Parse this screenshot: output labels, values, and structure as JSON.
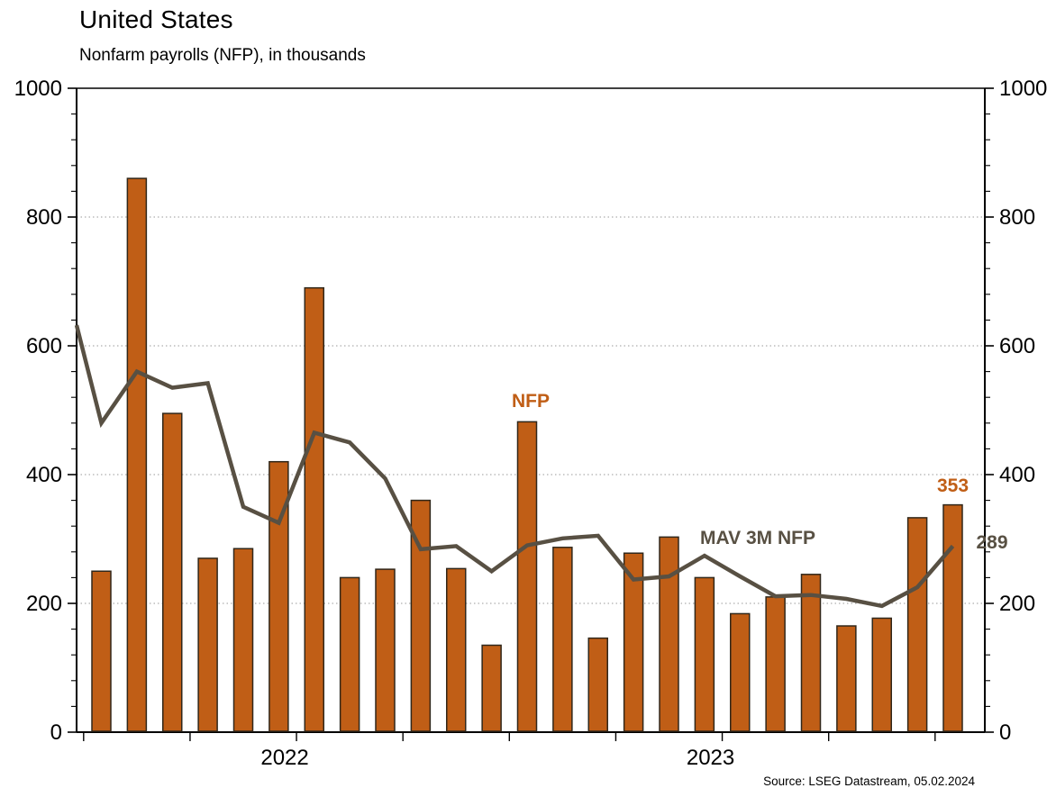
{
  "header": {
    "title": "United States",
    "subtitle": "Nonfarm payrolls (NFP), in thousands"
  },
  "source_note": "Source: LSEG Datastream, 05.02.2024",
  "annotations": {
    "bar_series_label": "NFP",
    "line_series_label": "MAV 3M NFP",
    "last_bar_value_label": "353",
    "last_line_value_label": "289"
  },
  "colors": {
    "bar_fill": "#c05e16",
    "bar_stroke": "#30271a",
    "line": "#585043",
    "grid": "#9a9a9a",
    "axis": "#000000",
    "text": "#000000"
  },
  "chart_data": {
    "type": "bar",
    "title": "United States",
    "subtitle": "Nonfarm payrolls (NFP), in thousands",
    "xlabel": "",
    "ylabel": "",
    "ylim": [
      0,
      1000
    ],
    "y_major_ticks": [
      0,
      200,
      400,
      600,
      800,
      1000
    ],
    "y_minor_step": 40,
    "grid_values": [
      200,
      400,
      600,
      800
    ],
    "grid": "dotted-horizontal",
    "dual_y_axis": true,
    "x_tick_every_months": 3,
    "categories": [
      "2022-01",
      "2022-02",
      "2022-03",
      "2022-04",
      "2022-05",
      "2022-06",
      "2022-07",
      "2022-08",
      "2022-09",
      "2022-10",
      "2022-11",
      "2022-12",
      "2023-01",
      "2023-02",
      "2023-03",
      "2023-04",
      "2023-05",
      "2023-06",
      "2023-07",
      "2023-08",
      "2023-09",
      "2023-10",
      "2023-11",
      "2023-12",
      "2024-01"
    ],
    "year_labels": [
      {
        "label": "2022",
        "center_month_offset": 5.5
      },
      {
        "label": "2023",
        "center_month_offset": 17.5
      }
    ],
    "series": [
      {
        "name": "NFP",
        "type": "bar",
        "values": [
          250,
          860,
          495,
          270,
          285,
          420,
          690,
          240,
          253,
          360,
          254,
          135,
          482,
          287,
          146,
          278,
          303,
          240,
          184,
          210,
          245,
          165,
          177,
          333,
          353
        ]
      },
      {
        "name": "MAV 3M NFP",
        "type": "line",
        "lead_in_value_at_axis": 632,
        "values": [
          480,
          560,
          535,
          542,
          350,
          325,
          465,
          450,
          394,
          284,
          289,
          250,
          290,
          301,
          305,
          237,
          242,
          274,
          242,
          211,
          213,
          207,
          196,
          225,
          289
        ]
      }
    ],
    "legend_position": "inline-annotations",
    "annotation_points": [
      {
        "text": "NFP",
        "month": "2023-01",
        "y_value": 510
      },
      {
        "text": "MAV 3M NFP",
        "month": "2023-07",
        "y_value": 300
      },
      {
        "text": "353",
        "month": "2024-01",
        "y_value": 378
      },
      {
        "text": "289",
        "month": "2024-01",
        "y_value": 289
      }
    ]
  }
}
